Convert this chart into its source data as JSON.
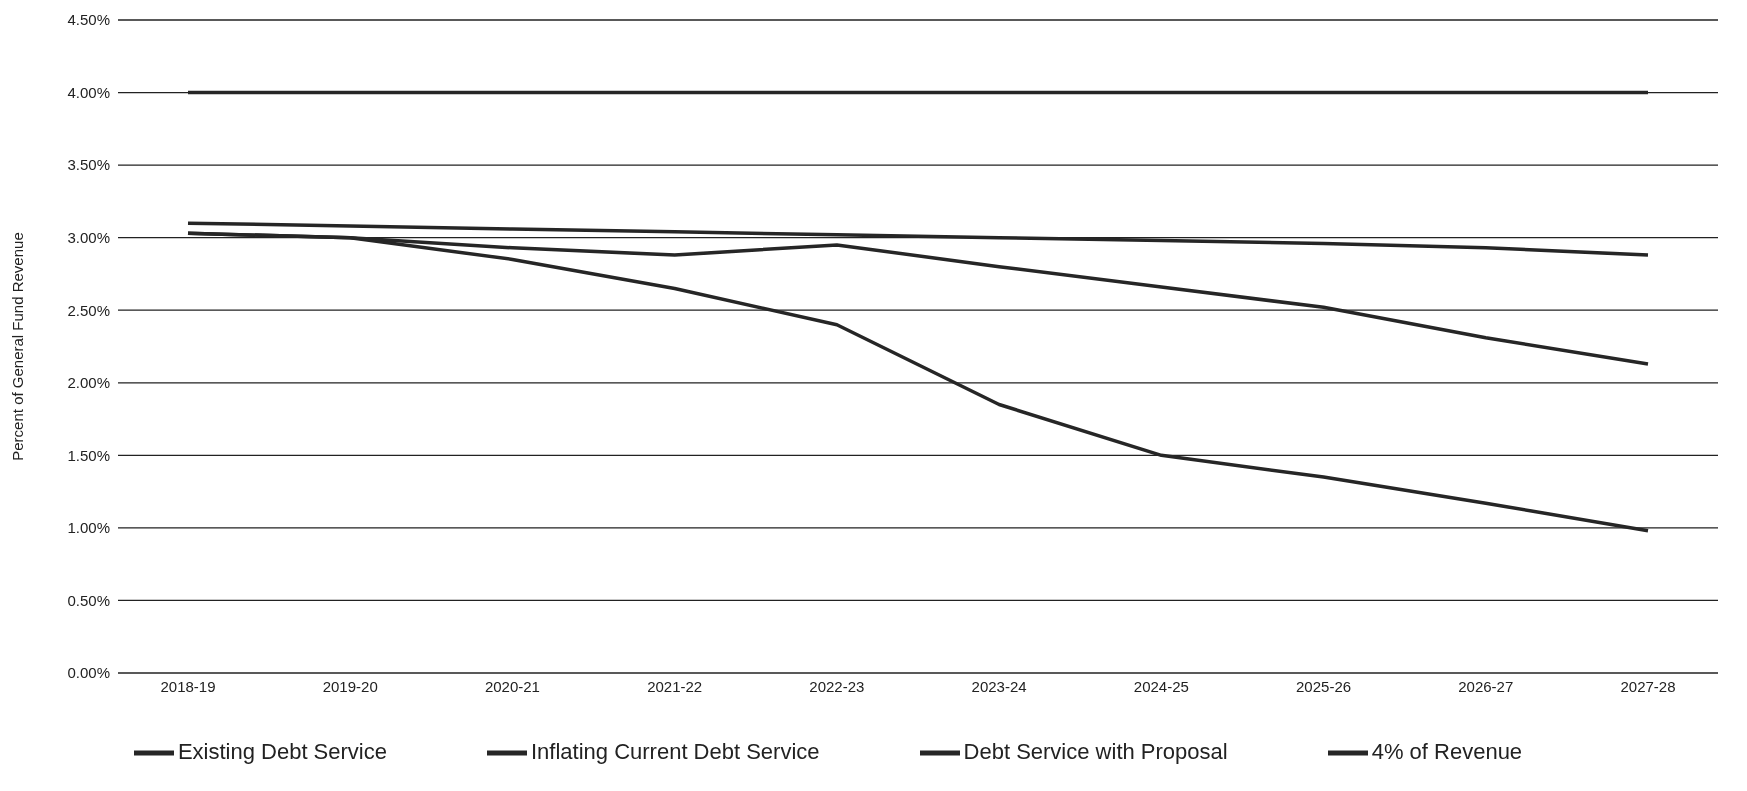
{
  "chart_data": {
    "type": "line",
    "ylabel": "Percent of General Fund Revenue",
    "categories": [
      "2018-19",
      "2019-20",
      "2020-21",
      "2021-22",
      "2022-23",
      "2023-24",
      "2024-25",
      "2025-26",
      "2026-27",
      "2027-28"
    ],
    "series": [
      {
        "name": "Existing Debt Service",
        "color": "#262626",
        "values": [
          3.03,
          3.0,
          2.85,
          2.65,
          2.4,
          1.85,
          1.5,
          1.35,
          1.17,
          0.98
        ]
      },
      {
        "name": "Inflating Current Debt Service",
        "color": "#262626",
        "values": [
          3.1,
          3.08,
          3.06,
          3.04,
          3.02,
          3.0,
          2.98,
          2.96,
          2.93,
          2.88
        ]
      },
      {
        "name": "Debt Service with Proposal",
        "color": "#262626",
        "values": [
          3.03,
          3.0,
          2.93,
          2.88,
          2.95,
          2.8,
          2.66,
          2.52,
          2.31,
          2.13
        ]
      },
      {
        "name": "4% of Revenue",
        "color": "#262626",
        "values": [
          4.0,
          4.0,
          4.0,
          4.0,
          4.0,
          4.0,
          4.0,
          4.0,
          4.0,
          4.0
        ]
      }
    ],
    "ylim": [
      0,
      4.5
    ],
    "yticks": [
      {
        "value": 0,
        "label": "0.00%"
      },
      {
        "value": 0.5,
        "label": "0.50%"
      },
      {
        "value": 1,
        "label": "1.00%"
      },
      {
        "value": 1.5,
        "label": "1.50%"
      },
      {
        "value": 2,
        "label": "2.00%"
      },
      {
        "value": 2.5,
        "label": "2.50%"
      },
      {
        "value": 3,
        "label": "3.00%"
      },
      {
        "value": 3.5,
        "label": "3.50%"
      },
      {
        "value": 4,
        "label": "4.00%"
      },
      {
        "value": 4.5,
        "label": "4.50%"
      }
    ],
    "grid": "y",
    "legend": "bottom",
    "marker": "none",
    "line_style": "solid"
  }
}
